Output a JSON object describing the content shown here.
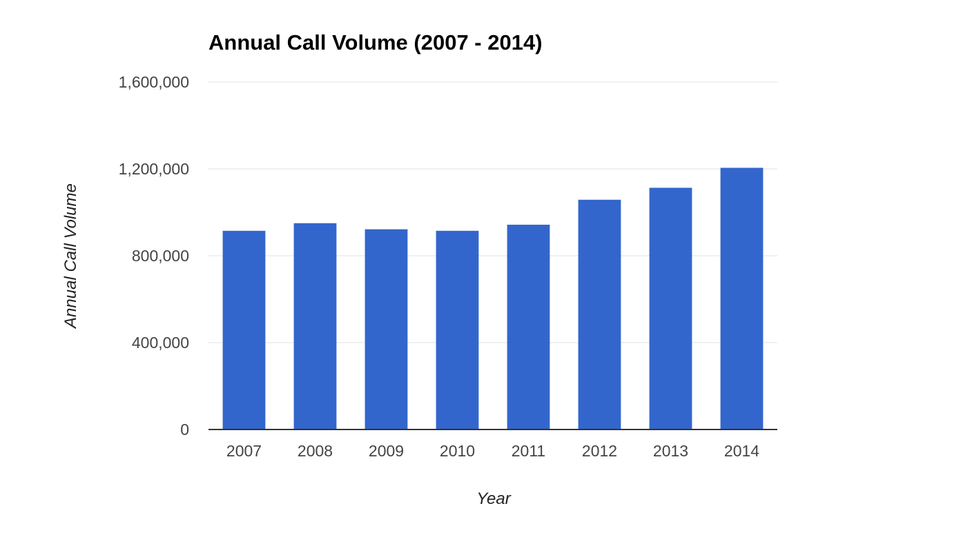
{
  "chart_data": {
    "type": "bar",
    "title": "Annual Call Volume (2007 - 2014)",
    "xlabel": "Year",
    "ylabel": "Annual Call Volume",
    "categories": [
      "2007",
      "2008",
      "2009",
      "2010",
      "2011",
      "2012",
      "2013",
      "2014"
    ],
    "series": [
      {
        "values": [
          915000,
          950000,
          922000,
          915000,
          943000,
          1058000,
          1113000,
          1205000
        ]
      }
    ],
    "ylim": [
      0,
      1600000
    ],
    "yticks": [
      0,
      400000,
      800000,
      1200000,
      1600000
    ],
    "ytick_labels": [
      "0",
      "400,000",
      "800,000",
      "1,200,000",
      "1,600,000"
    ],
    "grid": true,
    "legend": "none",
    "colors": {
      "bar": "#3366cc",
      "gridline": "#ebebeb",
      "baseline": "#333333"
    }
  }
}
